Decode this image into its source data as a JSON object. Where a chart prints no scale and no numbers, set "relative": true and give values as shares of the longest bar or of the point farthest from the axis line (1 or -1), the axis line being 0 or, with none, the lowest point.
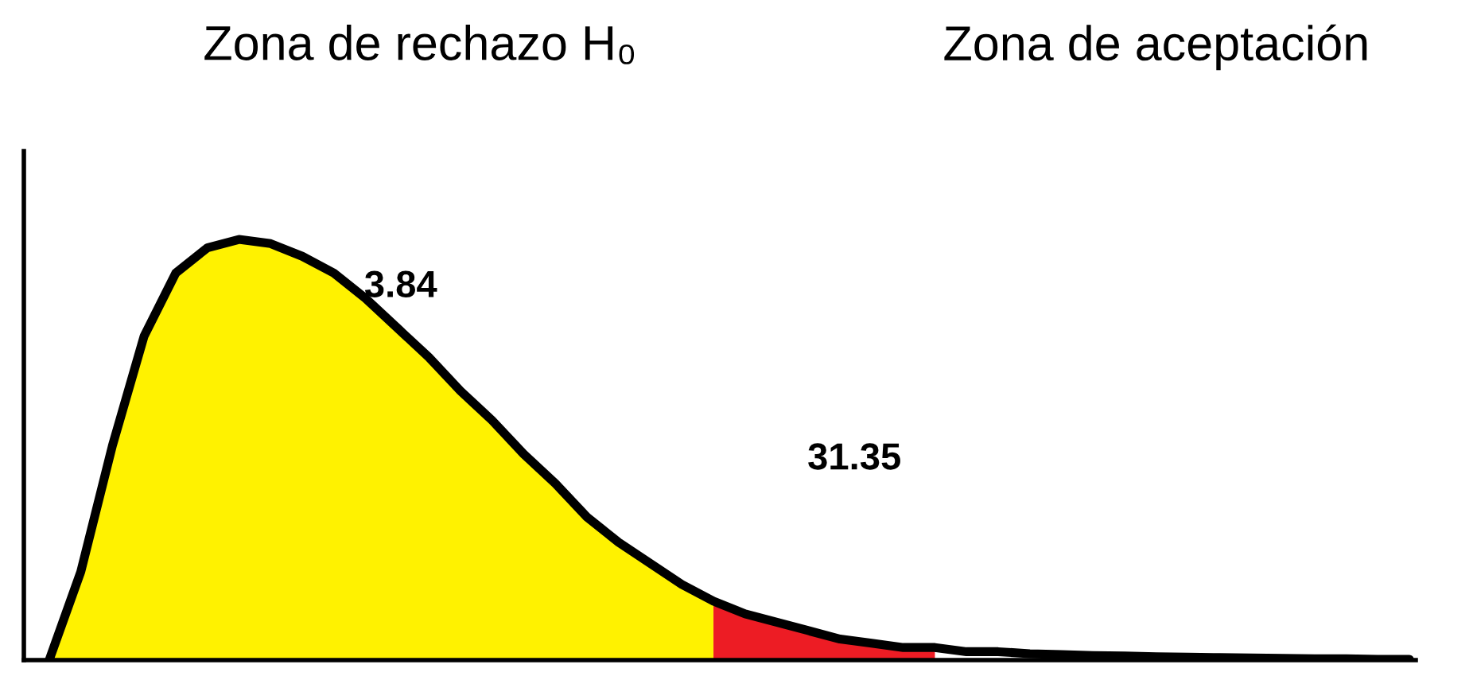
{
  "chart_data": {
    "type": "area",
    "relative": true,
    "categories": [
      null,
      null,
      null,
      null,
      null,
      null,
      null,
      null,
      null,
      null,
      null,
      null,
      null,
      null,
      null,
      null,
      null,
      null,
      null,
      null,
      null,
      null,
      null,
      null,
      null,
      null,
      null,
      null,
      null,
      null,
      null,
      null,
      null,
      null,
      null,
      null,
      null,
      null,
      null,
      null,
      null,
      null,
      null,
      null
    ],
    "series": [
      {
        "color": "#fff200",
        "values": [
          0,
          0.21,
          0.51,
          0.77,
          0.92,
          0.98,
          1.0,
          0.99,
          0.96,
          0.92,
          0.86,
          0.79,
          0.72,
          0.64,
          0.57,
          0.49,
          0.42,
          0.34,
          0.28,
          0.23,
          0.18,
          0.14,
          null,
          null,
          null,
          null,
          null,
          null,
          null,
          null,
          null,
          null,
          null,
          null,
          null,
          null,
          null,
          null,
          null,
          null,
          null,
          null,
          null,
          null
        ]
      },
      {
        "color": "#ed1c24",
        "values": [
          null,
          null,
          null,
          null,
          null,
          null,
          null,
          null,
          null,
          null,
          null,
          null,
          null,
          null,
          null,
          null,
          null,
          null,
          null,
          null,
          null,
          0.14,
          0.11,
          0.09,
          0.07,
          0.05,
          0.04,
          0.03,
          0.03,
          null,
          null,
          null,
          null,
          null,
          null,
          null,
          null,
          null,
          null,
          null,
          null,
          null,
          null,
          null
        ]
      },
      {
        "type": "line",
        "color": "#000000",
        "values": [
          0,
          0.21,
          0.51,
          0.77,
          0.92,
          0.98,
          1.0,
          0.99,
          0.96,
          0.92,
          0.86,
          0.79,
          0.72,
          0.64,
          0.57,
          0.49,
          0.42,
          0.34,
          0.28,
          0.23,
          0.18,
          0.14,
          0.11,
          0.09,
          0.07,
          0.05,
          0.04,
          0.03,
          0.03,
          0.02,
          0.02,
          0.015,
          0.013,
          0.011,
          0.01,
          0.008,
          0.007,
          0.006,
          0.005,
          0.004,
          0.003,
          0.003,
          0.002,
          0.002
        ]
      }
    ],
    "annotations": [
      "Zona de rechazo H₀",
      "Zona de aceptación",
      "3.84",
      "31.35"
    ],
    "grid": false,
    "legend": false
  }
}
